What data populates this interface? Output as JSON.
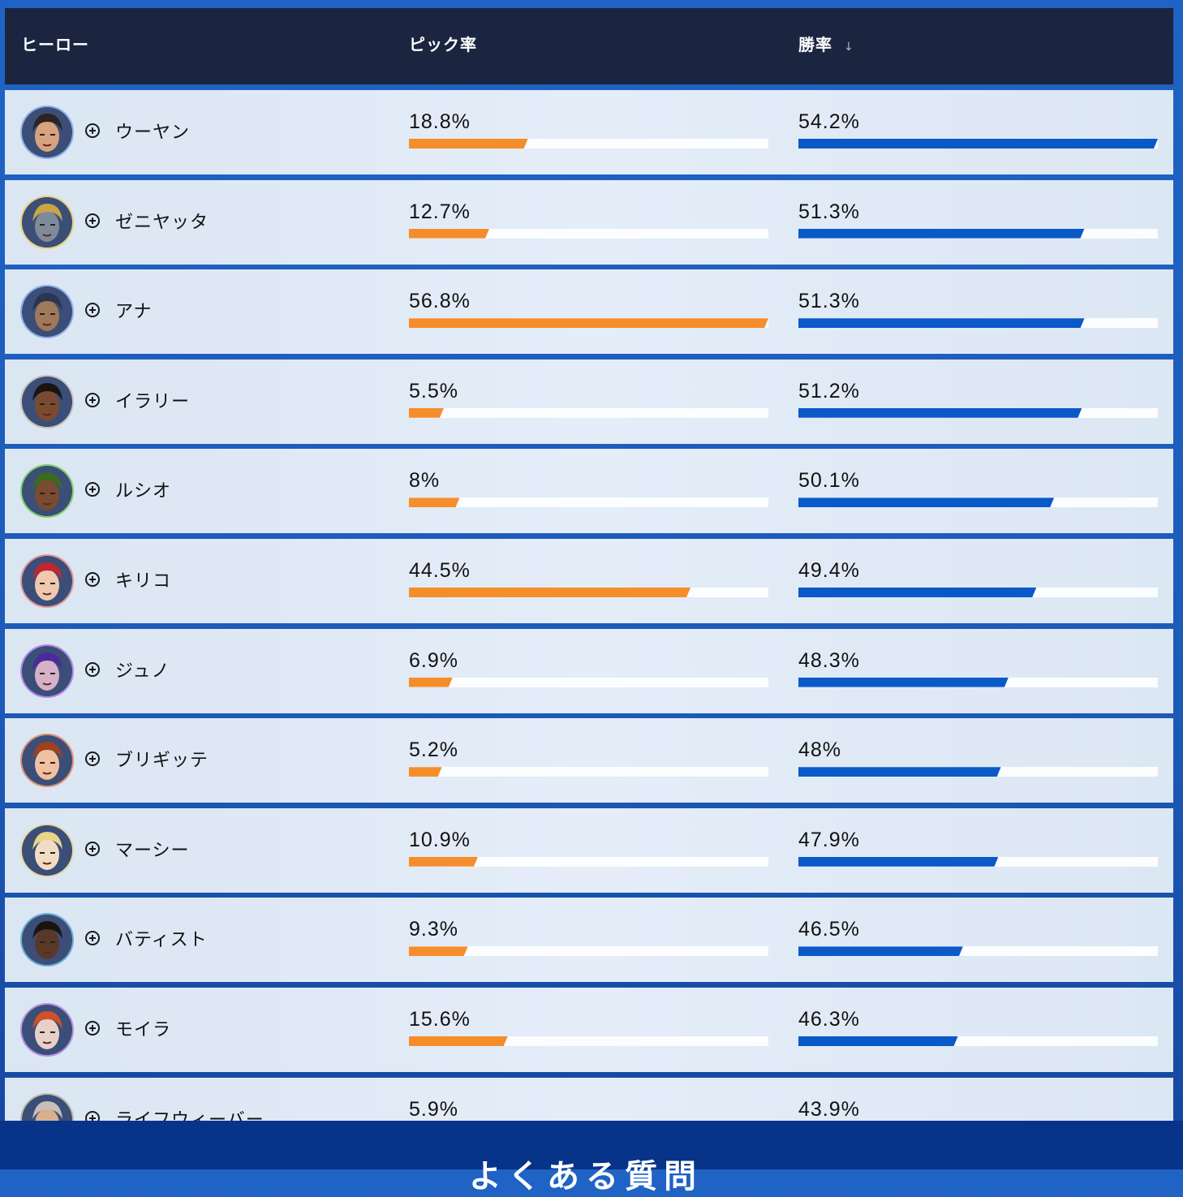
{
  "header": {
    "hero": "ヒーロー",
    "pick_rate": "ピック率",
    "win_rate": "勝率",
    "sort_icon": "arrow-down"
  },
  "colors": {
    "pick_bar": "#f68d2b",
    "win_bar": "#0a59c9",
    "header_bg": "#1b2540"
  },
  "rows": [
    {
      "name": "ウーヤン",
      "pick": "18.8%",
      "pick_pct": 18.8,
      "win": "54.2%",
      "win_pct": 54.2,
      "ring": "#8fb0e8",
      "skin": "#d9a27e",
      "hair": "#2b2420"
    },
    {
      "name": "ゼニヤッタ",
      "pick": "12.7%",
      "pick_pct": 12.7,
      "win": "51.3%",
      "win_pct": 51.3,
      "ring": "#e9d27a",
      "skin": "#7f8a9a",
      "hair": "#c9a546"
    },
    {
      "name": "アナ",
      "pick": "56.8%",
      "pick_pct": 56.8,
      "win": "51.3%",
      "win_pct": 51.3,
      "ring": "#8fb0e8",
      "skin": "#a0785a",
      "hair": "#2a3550"
    },
    {
      "name": "イラリー",
      "pick": "5.5%",
      "pick_pct": 5.5,
      "win": "51.2%",
      "win_pct": 51.2,
      "ring": "#c9c2b6",
      "skin": "#7a4b30",
      "hair": "#1a1410"
    },
    {
      "name": "ルシオ",
      "pick": "8%",
      "pick_pct": 8,
      "win": "50.1%",
      "win_pct": 50.1,
      "ring": "#7fd36a",
      "skin": "#7a4b30",
      "hair": "#3b6b1e"
    },
    {
      "name": "キリコ",
      "pick": "44.5%",
      "pick_pct": 44.5,
      "win": "49.4%",
      "win_pct": 49.4,
      "ring": "#e09898",
      "skin": "#f0c8b0",
      "hair": "#c0262e"
    },
    {
      "name": "ジュノ",
      "pick": "6.9%",
      "pick_pct": 6.9,
      "win": "48.3%",
      "win_pct": 48.3,
      "ring": "#b58ae8",
      "skin": "#d8b0c8",
      "hair": "#4b2a9a"
    },
    {
      "name": "ブリギッテ",
      "pick": "5.2%",
      "pick_pct": 5.2,
      "win": "48%",
      "win_pct": 48,
      "ring": "#e09070",
      "skin": "#f0c0a0",
      "hair": "#a0401e"
    },
    {
      "name": "マーシー",
      "pick": "10.9%",
      "pick_pct": 10.9,
      "win": "47.9%",
      "win_pct": 47.9,
      "ring": "#e8d8a0",
      "skin": "#f3dcc4",
      "hair": "#e8d58a"
    },
    {
      "name": "バティスト",
      "pick": "9.3%",
      "pick_pct": 9.3,
      "win": "46.5%",
      "win_pct": 46.5,
      "ring": "#6ab0d8",
      "skin": "#5a3828",
      "hair": "#1a1410"
    },
    {
      "name": "モイラ",
      "pick": "15.6%",
      "pick_pct": 15.6,
      "win": "46.3%",
      "win_pct": 46.3,
      "ring": "#b890e0",
      "skin": "#e8d0c8",
      "hair": "#d0502a"
    },
    {
      "name": "ライフウィーバー",
      "pick": "5.9%",
      "pick_pct": 5.9,
      "win": "43.9%",
      "win_pct": 43.9,
      "ring": "#c0b8a8",
      "skin": "#d8b090",
      "hair": "#c8c0b8"
    }
  ],
  "footer": {
    "title": "よくある質問"
  }
}
